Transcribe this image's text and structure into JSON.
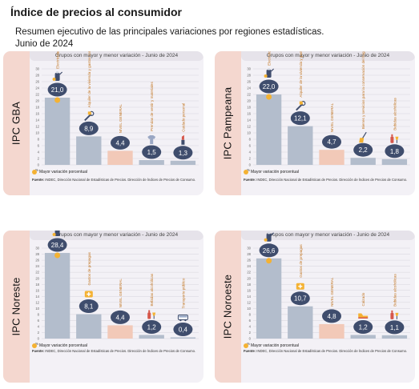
{
  "title": "Índice de precios al consumidor",
  "subtitle": "Resumen ejecutivo de las principales variaciones por regiones estadísticas.",
  "subtitle2": "Junio de 2024",
  "colors": {
    "max": "#f2c9b8",
    "bar": "#b3bdcc",
    "nivel": "#f2c9b8",
    "badge": "#3f4d6d",
    "accent": "#f4b233"
  },
  "chart_data": [
    {
      "type": "bar",
      "region": "IPC GBA",
      "caption": "Grupos con mayor y menor variación - Junio de 2024",
      "ylim": [
        0,
        30
      ],
      "ylabel": "%",
      "yticks": [
        "30",
        "28",
        "26",
        "24",
        "22",
        "20",
        "18",
        "16",
        "14",
        "12",
        "10",
        "8",
        "6",
        "4",
        "2",
        "0"
      ],
      "categories": [
        "Electricidad, gas y otros combustibles",
        "Alquiler de la vivienda y gastos conexos",
        "NIVEL GENERAL",
        "Prendas de vestir y materiales",
        "Cuidado personal"
      ],
      "values": [
        21.0,
        8.9,
        4.4,
        1.5,
        1.3
      ],
      "labels": [
        "21,0",
        "8,9",
        "4,4",
        "1,5",
        "1,3"
      ],
      "icons": [
        "gas-tank-icon",
        "wrench-icon",
        "",
        "shirt-icon",
        "lipstick-icon"
      ],
      "legend": "Mayor variación porcentual",
      "source_bold": "Fuente:",
      "source": " INDEC, Dirección Nacional de Estadísticas de Precios. Dirección de Índices de Precios de Consumo."
    },
    {
      "type": "bar",
      "region": "IPC Pampeana",
      "caption": "Grupos con mayor y menor variación - Junio de 2024",
      "ylim": [
        0,
        30
      ],
      "ylabel": "%",
      "yticks": [
        "30",
        "28",
        "26",
        "24",
        "22",
        "20",
        "18",
        "16",
        "14",
        "12",
        "10",
        "8",
        "6",
        "4",
        "2",
        "0"
      ],
      "categories": [
        "Electricidad, gas y otros combustibles",
        "Alquiler de la vivienda y gastos conexos",
        "NIVEL GENERAL",
        "Bienes y servicios para la conservación del hogar",
        "Bebidas alcohólicas"
      ],
      "values": [
        22.0,
        12.1,
        4.7,
        2.2,
        1.8
      ],
      "labels": [
        "22,0",
        "12,1",
        "4,7",
        "2,2",
        "1,8"
      ],
      "icons": [
        "gas-tank-icon",
        "wrench-icon",
        "",
        "broom-icon",
        "bottle-icon"
      ],
      "legend": "Mayor variación porcentual",
      "source_bold": "Fuente:",
      "source": " INDEC, Dirección Nacional de Estadísticas de Precios. Dirección de Índices de Precios de Consumo."
    },
    {
      "type": "bar",
      "region": "IPC Noreste",
      "caption": "Grupos con mayor y menor variación - Junio de 2024",
      "ylim": [
        0,
        30
      ],
      "ylabel": "%",
      "yticks": [
        "30",
        "28",
        "26",
        "24",
        "22",
        "20",
        "18",
        "16",
        "14",
        "12",
        "10",
        "8",
        "6",
        "4",
        "2",
        "0"
      ],
      "categories": [
        "Electricidad, gas y otros combustibles",
        "Gastos de prepagas",
        "NIVEL GENERAL",
        "Bebidas alcohólicas",
        "Transporte público"
      ],
      "values": [
        28.4,
        8.1,
        4.4,
        1.2,
        0.4
      ],
      "labels": [
        "28,4",
        "8,1",
        "4,4",
        "1,2",
        "0,4"
      ],
      "icons": [
        "gas-tank-icon",
        "medical-kit-icon",
        "",
        "bottle-icon",
        "bus-icon"
      ],
      "legend": "Mayor variación porcentual",
      "source_bold": "Fuente:",
      "source": " INDEC, Dirección Nacional de Estadísticas de Precios. Dirección de Índices de Precios de Consumo."
    },
    {
      "type": "bar",
      "region": "IPC Noroeste",
      "caption": "Grupos con mayor y menor variación - Junio de 2024",
      "ylim": [
        0,
        30
      ],
      "ylabel": "%",
      "yticks": [
        "30",
        "28",
        "26",
        "24",
        "22",
        "20",
        "18",
        "16",
        "14",
        "12",
        "10",
        "8",
        "6",
        "4",
        "2",
        "0"
      ],
      "categories": [
        "Electricidad, gas y otros combustibles",
        "Gastos de prepagas",
        "NIVEL GENERAL",
        "Calzado",
        "Bebidas alcohólicas"
      ],
      "values": [
        26.6,
        10.7,
        4.8,
        1.2,
        1.1
      ],
      "labels": [
        "26,6",
        "10,7",
        "4,8",
        "1,2",
        "1,1"
      ],
      "icons": [
        "gas-tank-icon",
        "medical-kit-icon",
        "",
        "shoe-icon",
        "bottle-icon"
      ],
      "legend": "Mayor variación porcentual",
      "source_bold": "Fuente:",
      "source": " INDEC, Dirección Nacional de Estadísticas de Precios. Dirección de Índices de Precios de Consumo."
    }
  ]
}
